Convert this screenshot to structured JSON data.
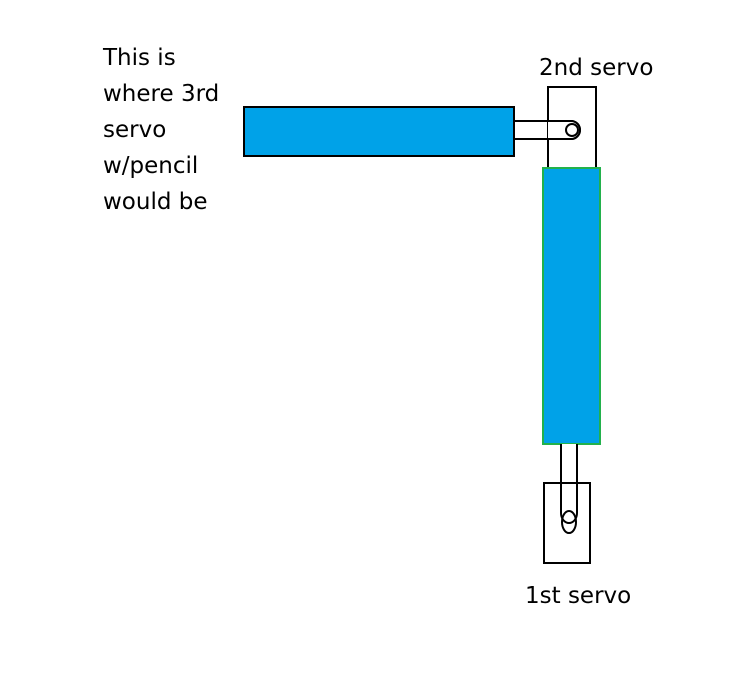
{
  "labels": {
    "note_lines": [
      "This is",
      "where 3rd",
      "servo",
      "w/pencil",
      "would be"
    ],
    "servo2": "2nd servo",
    "servo1": "1st servo"
  },
  "colors": {
    "arm_fill": "#00a2e8",
    "arm_border_lower": "#22b14c",
    "outline": "#000000",
    "background": "#ffffff"
  }
}
